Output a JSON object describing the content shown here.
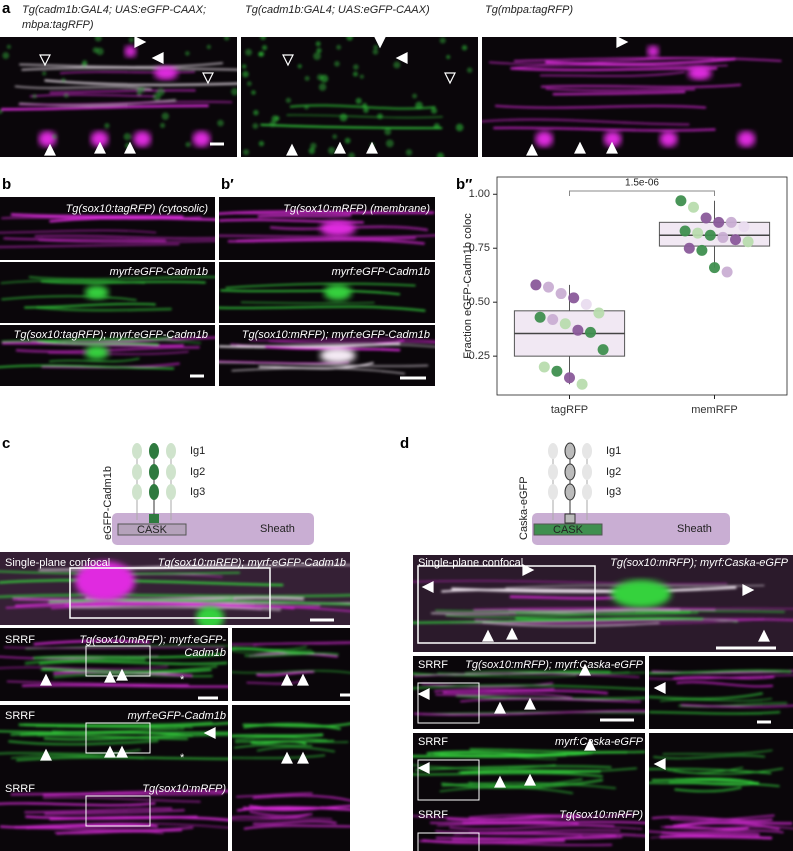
{
  "panel_labels": {
    "a": "a",
    "b": "b",
    "b_prime": "b′",
    "b_double_prime": "b″",
    "c": "c",
    "d": "d"
  },
  "panel_a": {
    "titles": [
      [
        "Tg(cadm1b:GAL4; UAS:eGFP-CAAX;",
        "mbpa:tagRFP)"
      ],
      "Tg(cadm1b:GAL4; UAS:eGFP-CAAX)",
      "Tg(mbpa:tagRFP)"
    ]
  },
  "panel_b": {
    "labels": [
      "Tg(sox10:tagRFP) (cytosolic)",
      "myrf:eGFP-Cadm1b",
      "Tg(sox10:tagRFP); myrf:eGFP-Cadm1b"
    ]
  },
  "panel_b_prime": {
    "labels": [
      "Tg(sox10:mRFP) (membrane)",
      "myrf:eGFP-Cadm1b",
      "Tg(sox10:mRFP); myrf:eGFP-Cadm1b"
    ]
  },
  "panel_c": {
    "diagram": {
      "construct": "eGFP-Cadm1b",
      "domains": [
        "Ig1",
        "Ig2",
        "Ig3"
      ],
      "partner": "CASK",
      "sheath": "Sheath"
    },
    "rows": [
      {
        "method": "Single-plane confocal",
        "label": "Tg(sox10:mRFP); myrf:eGFP-Cadm1b"
      },
      {
        "method": "SRRF",
        "label": [
          "Tg(sox10:mRFP); myrf:eGFP-",
          "Cadm1b"
        ],
        "marker": "*"
      },
      {
        "method": "SRRF",
        "label": "myrf:eGFP-Cadm1b",
        "marker": "*"
      },
      {
        "method": "SRRF",
        "label": "Tg(sox10:mRFP)"
      }
    ]
  },
  "panel_d": {
    "diagram": {
      "construct": "Caska-eGFP",
      "domains": [
        "Ig1",
        "Ig2",
        "Ig3"
      ],
      "partner": "CASK",
      "sheath": "Sheath"
    },
    "rows": [
      {
        "method": "Single-plane confocal",
        "label": "Tg(sox10:mRFP); myrf:Caska-eGFP"
      },
      {
        "method": "SRRF",
        "label": "Tg(sox10:mRFP); myrf:Caska-eGFP"
      },
      {
        "method": "SRRF",
        "label": "myrf:Caska-eGFP"
      },
      {
        "method": "SRRF",
        "label": "Tg(sox10:mRFP)"
      }
    ]
  },
  "chart_data": {
    "type": "box",
    "ylabel": "Fraction eGFP-Cadm1b coloc",
    "categories": [
      "tagRFP",
      "memRFP"
    ],
    "ylim": [
      0.07,
      1.08
    ],
    "yticks": [
      {
        "value": 0.25,
        "label": "0.25"
      },
      {
        "value": 0.5,
        "label": "0.50"
      },
      {
        "value": 0.75,
        "label": "0.75"
      },
      {
        "value": 1,
        "label": "1.00"
      }
    ],
    "box_color": "#f1e8f3",
    "boxes": [
      {
        "whisker_low": 0.12,
        "q1": 0.25,
        "median": 0.355,
        "q3": 0.46,
        "whisker_high": 0.58,
        "points": [
          0.58,
          0.57,
          0.54,
          0.52,
          0.49,
          0.45,
          0.43,
          0.42,
          0.4,
          0.37,
          0.36,
          0.28,
          0.2,
          0.18,
          0.15,
          0.12
        ],
        "point_colors": [
          "#8a5a9a",
          "#c9aed3",
          "#c9aed3",
          "#8a5a9a",
          "#e9dcef",
          "#b8dcae",
          "#3f8f4f",
          "#c9aed3",
          "#b8dcae",
          "#8a5a9a",
          "#3f8f4f",
          "#3f8f4f",
          "#b8dcae",
          "#3f8f4f",
          "#8a5a9a",
          "#b8dcae"
        ]
      },
      {
        "whisker_low": 0.66,
        "q1": 0.76,
        "median": 0.81,
        "q3": 0.87,
        "whisker_high": 0.97,
        "points": [
          0.97,
          0.94,
          0.89,
          0.87,
          0.87,
          0.85,
          0.83,
          0.82,
          0.81,
          0.8,
          0.79,
          0.78,
          0.75,
          0.74,
          0.66,
          0.64
        ],
        "point_colors": [
          "#3f8f4f",
          "#b8dcae",
          "#8a5a9a",
          "#8a5a9a",
          "#c9aed3",
          "#e9dcef",
          "#3f8f4f",
          "#b8dcae",
          "#3f8f4f",
          "#c9aed3",
          "#8a5a9a",
          "#b8dcae",
          "#8a5a9a",
          "#3f8f4f",
          "#3f8f4f",
          "#c9aed3"
        ]
      }
    ],
    "annotation": "1.5e-06"
  }
}
